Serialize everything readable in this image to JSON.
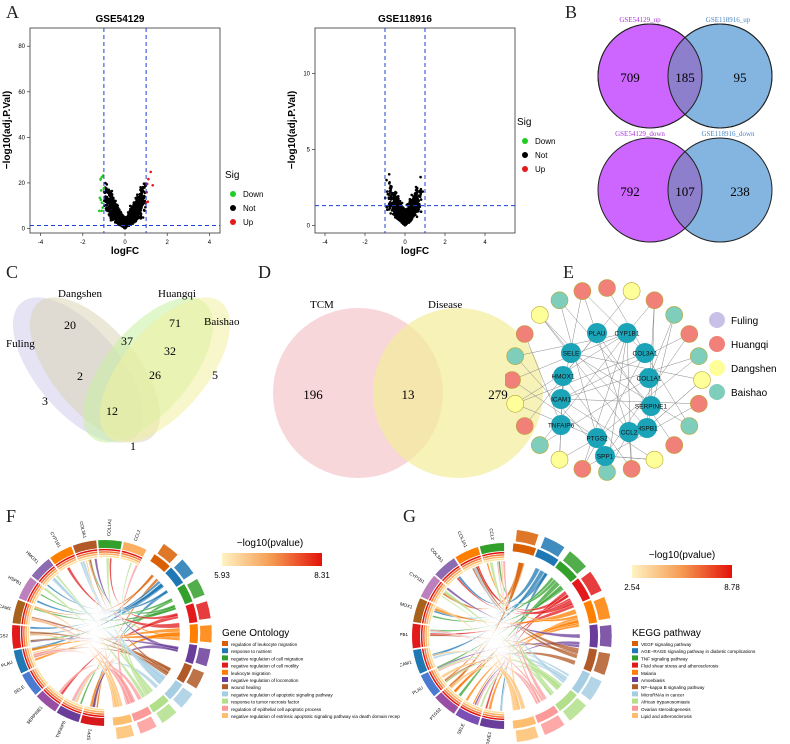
{
  "panels": {
    "A": "A",
    "B": "B",
    "C": "C",
    "D": "D",
    "E": "E",
    "F": "F",
    "G": "G"
  },
  "volcano": [
    {
      "title": "GSE54129",
      "xlabel": "logFC",
      "ylabel": "−log10(adj.P.Val)",
      "xticks": [
        "-4",
        "-2",
        "0",
        "2",
        "4"
      ],
      "yticks": [
        "0",
        "20",
        "40",
        "60",
        "80"
      ],
      "legend_title": "Sig",
      "legend": [
        "Down",
        "Not",
        "Up"
      ]
    },
    {
      "title": "GSE118916",
      "xlabel": "logFC",
      "ylabel": "−log10(adj.P.Val)",
      "xticks": [
        "-4",
        "-2",
        "0",
        "2",
        "4"
      ],
      "yticks": [
        "0",
        "5",
        "10"
      ],
      "legend_title": "Sig",
      "legend": [
        "Down",
        "Not",
        "Up"
      ]
    }
  ],
  "vennB": [
    {
      "left_label": "GSE54129_up",
      "right_label": "GSE118916_up",
      "left": "709",
      "both": "185",
      "right": "95"
    },
    {
      "left_label": "GSE54129_down",
      "right_label": "GSE118916_down",
      "left": "792",
      "both": "107",
      "right": "238"
    }
  ],
  "vennC": {
    "names": [
      "Dangshen",
      "Huangqi",
      "Fuling",
      "Baishao"
    ],
    "values": [
      "20",
      "71",
      "37",
      "32",
      "5",
      "2",
      "26",
      "3",
      "12",
      "1"
    ]
  },
  "vennD": {
    "left_label": "TCM",
    "right_label": "Disease",
    "left": "196",
    "both": "13",
    "right": "279"
  },
  "network": {
    "targets": [
      "PLAU",
      "CYP1B1",
      "SELE",
      "COL3A1",
      "HMOX1",
      "COL1A1",
      "ICAM1",
      "SERPINE1",
      "TNFAIP6",
      "HSPB1",
      "PTGS2",
      "CCL2",
      "SPP1"
    ],
    "legend": [
      "Fuling",
      "Huangqi",
      "Dangshen",
      "Baishao"
    ]
  },
  "chordF": {
    "title": "−log10(pvalue)",
    "min": "5.93",
    "max": "8.31",
    "legend_title": "Gene Ontology",
    "terms": [
      "regulation of leukocyte migration",
      "response to nutrient",
      "negative regulation of cell migration",
      "negative regulation of cell motility",
      "leukocyte migration",
      "negative regulation of locomotion",
      "wound healing",
      "negative regulation of apoptotic signaling pathway",
      "response to tumor necrosis factor",
      "regulation of epithelial cell apoptotic process",
      "negative regulation of extrinsic apoptotic signaling pathway via death domain receptors"
    ],
    "genes": [
      "SPP1",
      "TNFAIP6",
      "SERPINE1",
      "SELE",
      "PLAU",
      "PTGS2",
      "ICAM1",
      "HSPB1",
      "HMOX1",
      "CYP1B1",
      "COL3A1",
      "COL1A1",
      "CCL2"
    ]
  },
  "chordG": {
    "title": "−log10(pvalue)",
    "min": "2.54",
    "max": "8.78",
    "legend_title": "KEGG pathway",
    "terms": [
      "VEGF signaling pathway",
      "AGE−RAGE signaling pathway in diabetic complications",
      "TNF signaling pathway",
      "Fluid shear stress and atherosclerosis",
      "Malaria",
      "Amoebiasis",
      "NF−kappa B signaling pathway",
      "MicroRNAs in cancer",
      "African trypanosomiasis",
      "Ovarian steroidogenesis",
      "Lipid and atherosclerosis"
    ],
    "genes": [
      "SERPINE1",
      "SELE",
      "PTGS2",
      "PLAU",
      "ICAM1",
      "HSPB1",
      "HMOX1",
      "CYP1B1",
      "COL3A1",
      "COL1A1",
      "CCL2"
    ]
  },
  "colors": {
    "down": "#22cc22",
    "not": "#000000",
    "up": "#e31a1c",
    "vennL": "#cc66ff",
    "vennR": "#6fa8dc",
    "fuling": "#c8c0e6",
    "huangqi": "#f08078",
    "dangshen": "#ffff99",
    "baishao": "#7fcdbb",
    "target": "#1ba3b8"
  },
  "chart_data": [
    {
      "type": "scatter",
      "title": "GSE54129",
      "xlabel": "logFC",
      "ylabel": "−log10(adj.P.Val)",
      "series": [
        {
          "name": "Down"
        },
        {
          "name": "Not"
        },
        {
          "name": "Up"
        }
      ],
      "xlim": [
        -4.5,
        4.5
      ],
      "ylim": [
        -2,
        88
      ],
      "thresholds": {
        "logFC": [
          -1,
          1
        ],
        "y": 1.3
      },
      "legend_position": "right"
    },
    {
      "type": "scatter",
      "title": "GSE118916",
      "xlabel": "logFC",
      "ylabel": "−log10(adj.P.Val)",
      "series": [
        {
          "name": "Down"
        },
        {
          "name": "Not"
        },
        {
          "name": "Up"
        }
      ],
      "xlim": [
        -4.5,
        5.5
      ],
      "ylim": [
        -0.5,
        13
      ],
      "thresholds": {
        "logFC": [
          -1,
          1
        ],
        "y": 1.3
      },
      "legend_position": "right"
    }
  ]
}
